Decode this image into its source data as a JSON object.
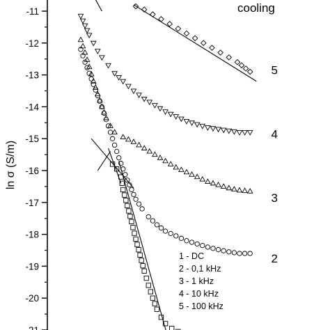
{
  "chart_data": {
    "type": "scatter",
    "title": "cooling",
    "ylabel": "ln σ (S/m)",
    "xlabel": "",
    "ylim": [
      -21,
      -11
    ],
    "yticks": [
      "-21",
      "-20",
      "-19",
      "-18",
      "-17",
      "-16",
      "-15",
      "-14",
      "-13",
      "-12",
      "-11"
    ],
    "grid": false,
    "legend": {
      "placement": "bottom-center",
      "entries": [
        "1 - DC",
        "2 - 0,1 kHz",
        "3 - 1 kHz",
        "4 - 10 kHz",
        "5 - 100 kHz"
      ]
    },
    "x_note": "x axis not shown in the crop; x values are relative positions 0-1 across the visible plot",
    "series": [
      {
        "name": "1",
        "marker": "square",
        "points": [
          [
            0.15,
            -15.8
          ],
          [
            0.17,
            -15.95
          ],
          [
            0.19,
            -16.2
          ],
          [
            0.2,
            -16.6
          ],
          [
            0.22,
            -17.1
          ],
          [
            0.24,
            -17.6
          ],
          [
            0.26,
            -18.15
          ],
          [
            0.28,
            -18.65
          ],
          [
            0.3,
            -19.15
          ],
          [
            0.32,
            -19.6
          ],
          [
            0.34,
            -20.0
          ],
          [
            0.36,
            -20.35
          ],
          [
            0.38,
            -20.6
          ],
          [
            0.4,
            -20.8
          ],
          [
            0.43,
            -20.95
          ],
          [
            0.46,
            -21.05
          ],
          [
            0.49,
            -21.15
          ]
        ]
      },
      {
        "name": "2",
        "marker": "circle",
        "points": [
          [
            0.0,
            -12.2
          ],
          [
            0.02,
            -12.6
          ],
          [
            0.04,
            -12.95
          ],
          [
            0.06,
            -13.3
          ],
          [
            0.08,
            -13.65
          ],
          [
            0.1,
            -14.0
          ],
          [
            0.12,
            -14.4
          ],
          [
            0.14,
            -14.8
          ],
          [
            0.16,
            -15.2
          ],
          [
            0.18,
            -15.6
          ],
          [
            0.2,
            -15.95
          ],
          [
            0.22,
            -16.3
          ],
          [
            0.24,
            -16.6
          ],
          [
            0.26,
            -16.9
          ],
          [
            0.29,
            -17.2
          ],
          [
            0.32,
            -17.45
          ],
          [
            0.36,
            -17.7
          ],
          [
            0.4,
            -17.9
          ],
          [
            0.45,
            -18.05
          ],
          [
            0.5,
            -18.2
          ],
          [
            0.55,
            -18.3
          ],
          [
            0.6,
            -18.4
          ],
          [
            0.65,
            -18.48
          ],
          [
            0.7,
            -18.55
          ],
          [
            0.75,
            -18.6
          ],
          [
            0.8,
            -18.6
          ]
        ]
      },
      {
        "name": "3",
        "marker": "triangle-up",
        "points": [
          [
            0.0,
            -11.9
          ],
          [
            0.02,
            -12.3
          ],
          [
            0.04,
            -12.75
          ],
          [
            0.06,
            -13.2
          ],
          [
            0.08,
            -13.6
          ],
          [
            0.1,
            -14.0
          ],
          [
            0.12,
            -14.35
          ],
          [
            0.14,
            -14.6
          ],
          [
            0.16,
            -14.8
          ],
          [
            0.2,
            -14.95
          ],
          [
            0.25,
            -15.1
          ],
          [
            0.3,
            -15.3
          ],
          [
            0.35,
            -15.5
          ],
          [
            0.4,
            -15.7
          ],
          [
            0.45,
            -15.9
          ],
          [
            0.5,
            -16.05
          ],
          [
            0.55,
            -16.2
          ],
          [
            0.6,
            -16.35
          ],
          [
            0.65,
            -16.45
          ],
          [
            0.7,
            -16.55
          ],
          [
            0.75,
            -16.62
          ],
          [
            0.8,
            -16.65
          ]
        ]
      },
      {
        "name": "4",
        "marker": "triangle-down",
        "points": [
          [
            0.0,
            -11.15
          ],
          [
            0.02,
            -11.45
          ],
          [
            0.04,
            -11.75
          ],
          [
            0.06,
            -12.0
          ],
          [
            0.08,
            -12.25
          ],
          [
            0.1,
            -12.45
          ],
          [
            0.13,
            -12.7
          ],
          [
            0.16,
            -12.95
          ],
          [
            0.2,
            -13.2
          ],
          [
            0.25,
            -13.5
          ],
          [
            0.3,
            -13.75
          ],
          [
            0.35,
            -13.95
          ],
          [
            0.4,
            -14.15
          ],
          [
            0.45,
            -14.3
          ],
          [
            0.5,
            -14.45
          ],
          [
            0.55,
            -14.55
          ],
          [
            0.6,
            -14.65
          ],
          [
            0.65,
            -14.7
          ],
          [
            0.7,
            -14.75
          ],
          [
            0.75,
            -14.8
          ],
          [
            0.8,
            -14.8
          ]
        ]
      },
      {
        "name": "5",
        "marker": "diamond",
        "points": [
          [
            0.26,
            -10.85
          ],
          [
            0.3,
            -10.95
          ],
          [
            0.34,
            -11.1
          ],
          [
            0.38,
            -11.25
          ],
          [
            0.42,
            -11.4
          ],
          [
            0.46,
            -11.55
          ],
          [
            0.5,
            -11.7
          ],
          [
            0.54,
            -11.85
          ],
          [
            0.58,
            -12.0
          ],
          [
            0.62,
            -12.15
          ],
          [
            0.66,
            -12.3
          ],
          [
            0.7,
            -12.45
          ],
          [
            0.74,
            -12.6
          ],
          [
            0.78,
            -12.8
          ],
          [
            0.8,
            -12.9
          ]
        ]
      }
    ],
    "fit_lines": [
      {
        "of": "1",
        "from": [
          0.05,
          -15.0
        ],
        "to": [
          0.25,
          -16.55
        ]
      },
      {
        "of": "1",
        "from": [
          0.13,
          -15.3
        ],
        "to": [
          0.19,
          -16.4
        ]
      },
      {
        "of": "1",
        "from": [
          0.18,
          -15.7
        ],
        "to": [
          0.41,
          -21.2
        ]
      },
      {
        "of": "1",
        "from": [
          0.08,
          -16.0
        ],
        "to": [
          0.14,
          -15.4
        ]
      },
      {
        "of": "5",
        "from": [
          0.25,
          -10.8
        ],
        "to": [
          0.83,
          -13.2
        ]
      },
      {
        "of": "top",
        "from": [
          0.05,
          -10.4
        ],
        "to": [
          0.1,
          -11.0
        ]
      }
    ],
    "curve_labels": [
      {
        "text": "5",
        "at": [
          0.86,
          -12.85
        ]
      },
      {
        "text": "4",
        "at": [
          0.86,
          -14.85
        ]
      },
      {
        "text": "3",
        "at": [
          0.86,
          -16.85
        ]
      },
      {
        "text": "2",
        "at": [
          0.86,
          -18.75
        ]
      }
    ]
  }
}
